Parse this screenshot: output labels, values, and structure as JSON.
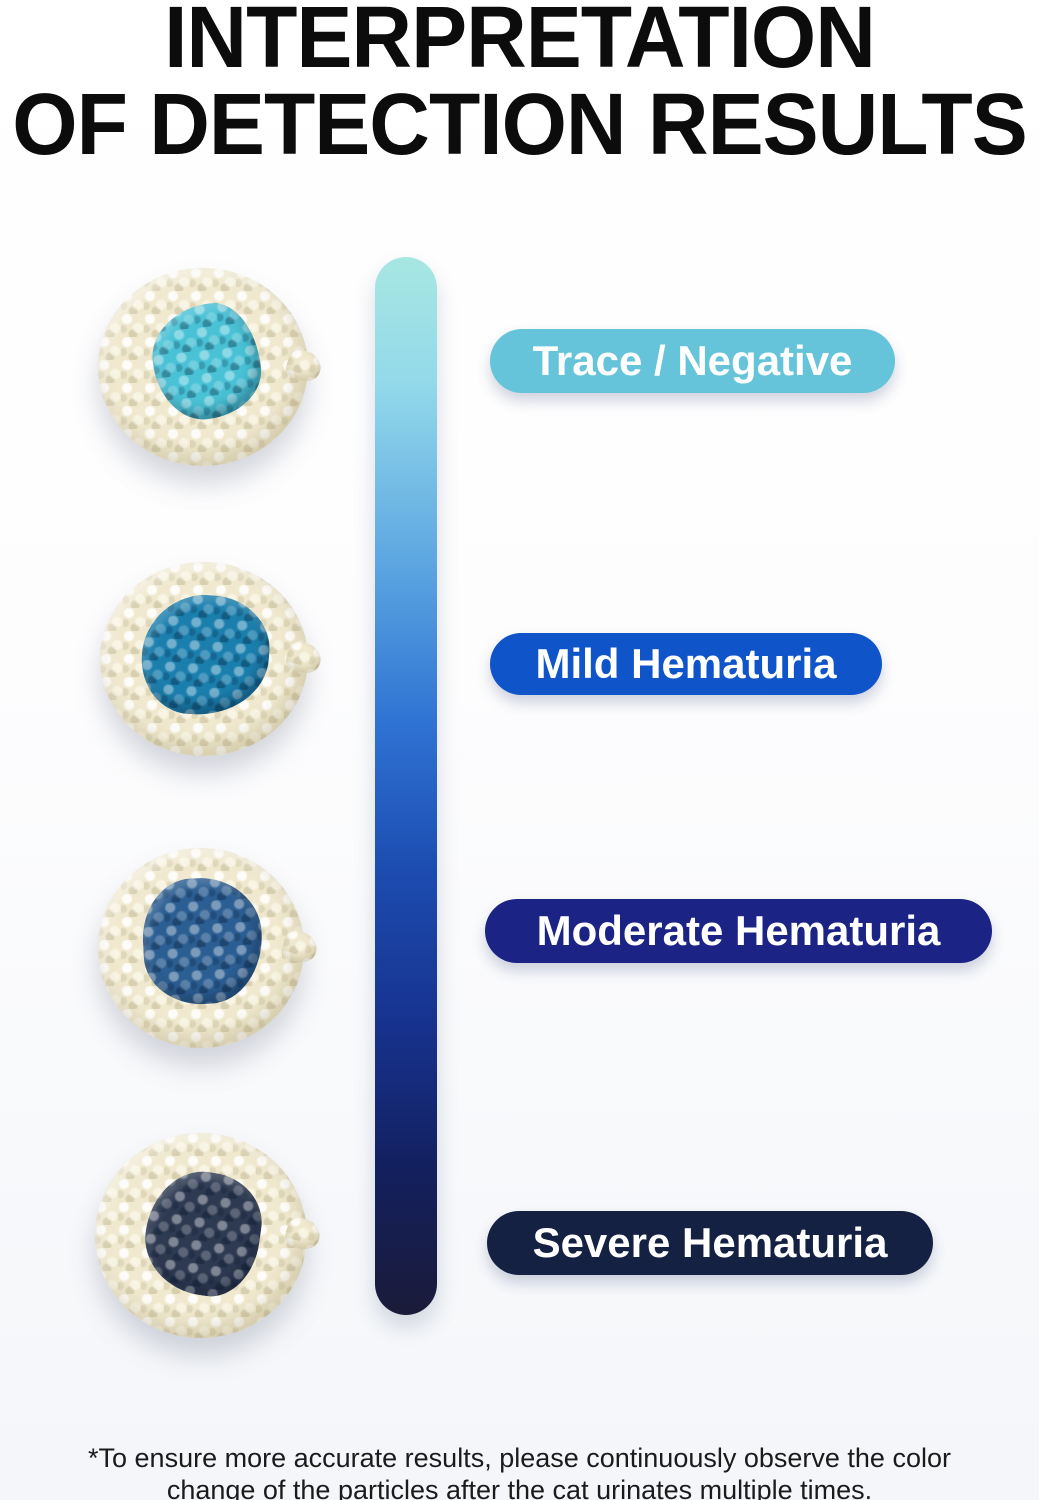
{
  "title": {
    "line1": "INTERPRETATION",
    "line2": "OF DETECTION RESULTS"
  },
  "scale_bar": {
    "gradient_css": "linear-gradient(180deg,#a7e7e2 0%,#93d9ea 12%,#5fa9e2 28%,#2f73d3 44%,#1c4cb0 58%,#173390 72%,#13205f 86%,#1a1b38 100%)"
  },
  "particles": {
    "base_color": "#f0e9cf"
  },
  "levels": [
    {
      "label": "Trace / Negative",
      "pill_color": "#65c4d9",
      "label_color": "#ffffff",
      "patch_color": "#49c2d6"
    },
    {
      "label": "Mild Hematuria",
      "pill_color": "#0f54c9",
      "label_color": "#ffffff",
      "patch_color": "#1b7fae"
    },
    {
      "label": "Moderate Hematuria",
      "pill_color": "#1b2385",
      "label_color": "#ffffff",
      "patch_color": "#2b5e92"
    },
    {
      "label": "Severe Hematuria",
      "pill_color": "#142142",
      "label_color": "#ffffff",
      "patch_color": "#2e3a52"
    }
  ],
  "footnote": "*To ensure more accurate results, please continuously observe the color change of the particles after the cat urinates multiple times."
}
